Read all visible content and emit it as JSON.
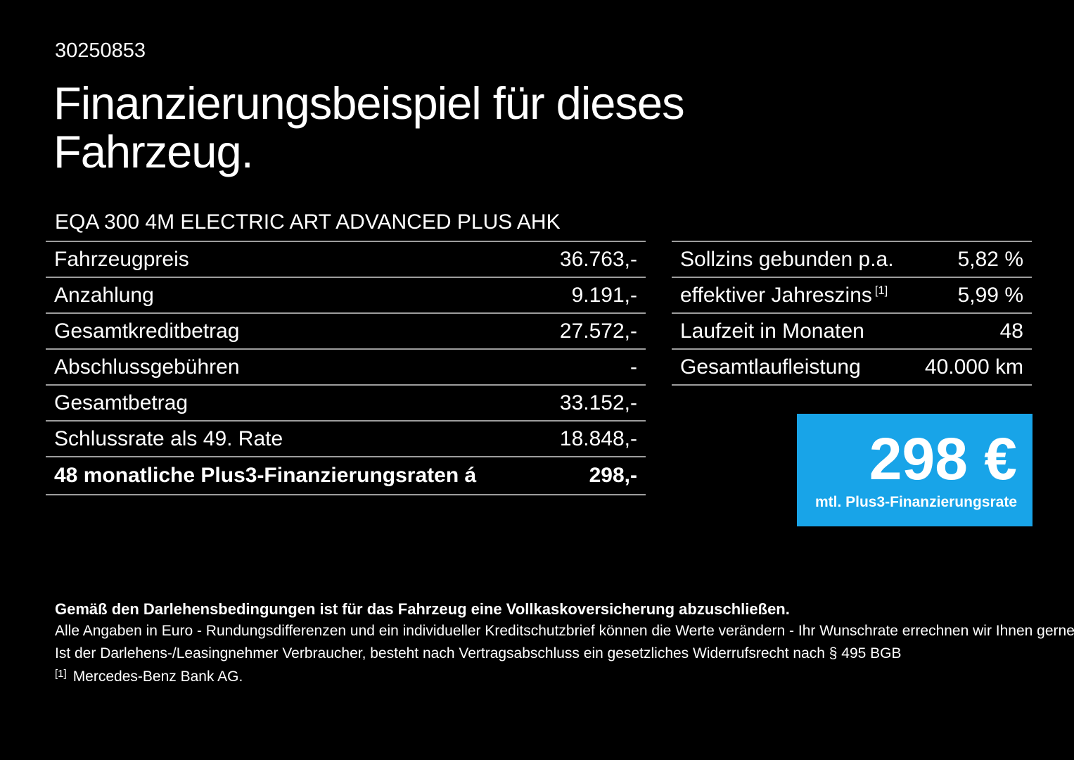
{
  "colors": {
    "bg": "#000000",
    "text": "#ffffff",
    "divider": "#9d9d9d",
    "accent": "#18a4e8"
  },
  "header": {
    "offer_number": "30250853",
    "title_line1": "Finanzierungsbeispiel für dieses",
    "title_line2": "Fahrzeug.",
    "vehicle_name": "EQA 300 4M ELECTRIC ART ADVANCED PLUS AHK"
  },
  "left_table": {
    "rows": [
      {
        "label": "Fahrzeugpreis",
        "value": "36.763,-"
      },
      {
        "label": "Anzahlung",
        "value": "9.191,-"
      },
      {
        "label": "Gesamtkreditbetrag",
        "value": "27.572,-"
      },
      {
        "label": "Abschlussgebühren",
        "value": "-"
      },
      {
        "label": "Gesamtbetrag",
        "value": "33.152,-"
      },
      {
        "label": "Schlussrate als 49. Rate",
        "value": "18.848,-"
      },
      {
        "label": "48 monatliche Plus3-Finanzierungsraten á",
        "value": "298,-"
      }
    ]
  },
  "right_table": {
    "rows": [
      {
        "label": "Sollzins gebunden p.a.",
        "sup": "",
        "value": "5,82 %"
      },
      {
        "label": "effektiver Jahreszins",
        "sup": "[1]",
        "value": "5,99 %"
      },
      {
        "label": "Laufzeit in Monaten",
        "sup": "",
        "value": "48"
      },
      {
        "label": "Gesamtlaufleistung",
        "sup": "",
        "value": "40.000 km"
      }
    ]
  },
  "rate_box": {
    "amount": "298 €",
    "caption": "mtl. Plus3-Finanzierungsrate"
  },
  "footer": {
    "line1": "Gemäß den Darlehensbedingungen ist für das Fahrzeug eine Vollkaskoversicherung abzuschließen.",
    "line2": "Alle Angaben in Euro - Rundungsdifferenzen und ein individueller Kreditschutzbrief können die Werte verändern - Ihr Wunschrate errechnen wir Ihnen gerne persönlich",
    "line3": "Ist der Darlehens-/Leasingnehmer Verbraucher, besteht nach Vertragsabschluss ein gesetzliches Widerrufsrecht nach § 495 BGB",
    "footnote_marker": "[1]",
    "footnote_text": "Mercedes-Benz Bank AG."
  }
}
